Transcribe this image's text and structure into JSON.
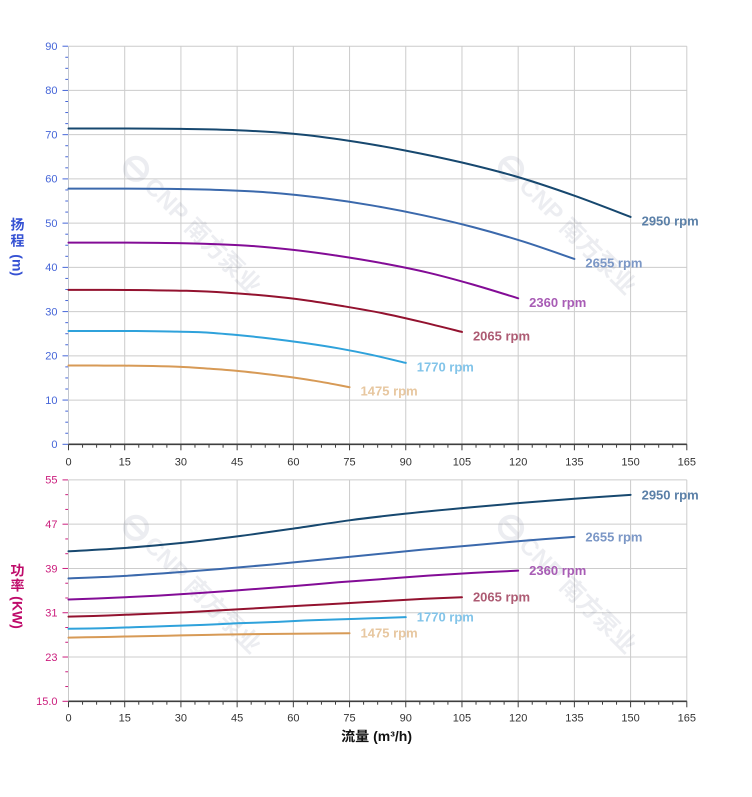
{
  "page": {
    "background": "#ffffff",
    "watermark": {
      "text": "CNP 南方泵业",
      "logo": "cnp-circle-e-logo",
      "color": "#69738f"
    }
  },
  "chart_data": [
    {
      "type": "line",
      "title": "",
      "ylabel": "扬程",
      "ylabel_unit": "(m)",
      "xlabel": "",
      "legend_position": "end-of-curve",
      "grid": true,
      "x_axis": {
        "min": 0,
        "max": 165,
        "major_step": 15,
        "minor_splits": 4,
        "tick_labels": [
          "0",
          "15",
          "30",
          "45",
          "60",
          "75",
          "90",
          "105",
          "120",
          "135",
          "150",
          "165"
        ],
        "label_color": "#333333",
        "line_color": "#3e3e3e"
      },
      "y_axis": {
        "min": 0,
        "max": 90,
        "major_step": 10,
        "minor_splits": 4,
        "tick_labels": [
          "0",
          "10",
          "20",
          "30",
          "40",
          "50",
          "60",
          "70",
          "80",
          "90"
        ],
        "label_color": "#4565d8",
        "title_color": "#3551d3",
        "line_color": "#c2c6ce"
      },
      "series": [
        {
          "name": "2950 rpm",
          "color": "#17486f",
          "label_color": "#5b80a8",
          "x": [
            0,
            15,
            30,
            45,
            60,
            75,
            90,
            105,
            120,
            135,
            150
          ],
          "values": [
            71.4,
            71.4,
            71.3,
            71.0,
            70.2,
            68.6,
            66.4,
            63.7,
            60.4,
            56.2,
            51.4
          ]
        },
        {
          "name": "2655 rpm",
          "color": "#3b69ac",
          "label_color": "#7b97c6",
          "x": [
            0,
            13.5,
            27,
            40.5,
            54,
            67.5,
            81,
            94.5,
            108,
            121.5,
            135
          ],
          "values": [
            57.8,
            57.8,
            57.75,
            57.5,
            56.9,
            55.7,
            54.0,
            51.8,
            49.1,
            45.8,
            41.9
          ]
        },
        {
          "name": "2360 rpm",
          "color": "#830c96",
          "label_color": "#a85cb5",
          "x": [
            0,
            12,
            24,
            36,
            48,
            60,
            72,
            84,
            96,
            108,
            120
          ],
          "values": [
            45.6,
            45.6,
            45.55,
            45.35,
            44.9,
            43.95,
            42.6,
            40.9,
            38.8,
            36.1,
            33.0
          ]
        },
        {
          "name": "2065 rpm",
          "color": "#93122f",
          "label_color": "#ad5b73",
          "x": [
            0,
            10.5,
            21,
            31.5,
            42,
            52.5,
            63,
            73.5,
            84,
            94.5,
            105
          ],
          "values": [
            34.9,
            34.9,
            34.85,
            34.7,
            34.3,
            33.6,
            32.6,
            31.2,
            29.6,
            27.6,
            25.4
          ]
        },
        {
          "name": "1770 rpm",
          "color": "#2fa2db",
          "label_color": "#82c4e9",
          "x": [
            0,
            9,
            18,
            27,
            36,
            45,
            54,
            63,
            72,
            81,
            90
          ],
          "values": [
            25.6,
            25.6,
            25.6,
            25.5,
            25.3,
            24.7,
            23.9,
            22.9,
            21.7,
            20.2,
            18.4
          ]
        },
        {
          "name": "1475 rpm",
          "color": "#d79a56",
          "label_color": "#e7c7a0",
          "x": [
            0,
            7.5,
            15,
            22.5,
            30,
            37.5,
            45,
            52.5,
            60,
            67.5,
            75
          ],
          "values": [
            17.8,
            17.8,
            17.78,
            17.7,
            17.5,
            17.1,
            16.6,
            15.9,
            15.1,
            14.1,
            12.9
          ]
        }
      ]
    },
    {
      "type": "line",
      "title": "",
      "ylabel": "功率",
      "ylabel_unit": "(KW)",
      "xlabel": "流量 (m³/h)",
      "legend_position": "end-of-curve",
      "grid": true,
      "x_axis": {
        "min": 0,
        "max": 165,
        "major_step": 15,
        "minor_splits": 4,
        "tick_labels": [
          "0",
          "15",
          "30",
          "45",
          "60",
          "75",
          "90",
          "105",
          "120",
          "135",
          "150",
          "165"
        ],
        "label_color": "#333333",
        "line_color": "#3e3e3e",
        "title_color": "#111111"
      },
      "y_axis": {
        "min": 15,
        "max": 55,
        "major_step": 8,
        "minor_splits": 3,
        "tick_labels": [
          "15.0",
          "23",
          "31",
          "39",
          "47",
          "55"
        ],
        "label_color": "#cb1d7d",
        "title_color": "#bf0b6a",
        "line_color": "#c9c9c9"
      },
      "series": [
        {
          "name": "2950 rpm",
          "color": "#17486f",
          "label_color": "#5b80a8",
          "x": [
            0,
            15,
            30,
            45,
            60,
            75,
            90,
            105,
            120,
            135,
            150
          ],
          "values": [
            42.1,
            42.7,
            43.6,
            44.8,
            46.2,
            47.7,
            48.9,
            49.9,
            50.8,
            51.6,
            52.3
          ]
        },
        {
          "name": "2655 rpm",
          "color": "#3b69ac",
          "label_color": "#7b97c6",
          "x": [
            0,
            13.5,
            27,
            40.5,
            54,
            67.5,
            81,
            94.5,
            108,
            121.5,
            135
          ],
          "values": [
            37.2,
            37.6,
            38.2,
            38.9,
            39.7,
            40.6,
            41.5,
            42.4,
            43.2,
            44.0,
            44.7
          ]
        },
        {
          "name": "2360 rpm",
          "color": "#830c96",
          "label_color": "#a85cb5",
          "x": [
            0,
            12,
            24,
            36,
            48,
            60,
            72,
            84,
            96,
            108,
            120
          ],
          "values": [
            33.4,
            33.7,
            34.1,
            34.6,
            35.2,
            35.8,
            36.5,
            37.1,
            37.7,
            38.2,
            38.6
          ]
        },
        {
          "name": "2065 rpm",
          "color": "#93122f",
          "label_color": "#ad5b73",
          "x": [
            0,
            10.5,
            21,
            31.5,
            42,
            52.5,
            63,
            73.5,
            84,
            94.5,
            105
          ],
          "values": [
            30.3,
            30.5,
            30.8,
            31.1,
            31.5,
            31.9,
            32.3,
            32.7,
            33.1,
            33.5,
            33.8
          ]
        },
        {
          "name": "1770 rpm",
          "color": "#2fa2db",
          "label_color": "#82c4e9",
          "x": [
            0,
            9,
            18,
            27,
            36,
            45,
            54,
            63,
            72,
            81,
            90
          ],
          "values": [
            28.1,
            28.2,
            28.4,
            28.6,
            28.8,
            29.1,
            29.3,
            29.6,
            29.8,
            30.0,
            30.2
          ]
        },
        {
          "name": "1475 rpm",
          "color": "#d79a56",
          "label_color": "#e7c7a0",
          "x": [
            0,
            7.5,
            15,
            22.5,
            30,
            37.5,
            45,
            52.5,
            60,
            67.5,
            75
          ],
          "values": [
            26.5,
            26.6,
            26.7,
            26.8,
            26.9,
            27.0,
            27.1,
            27.15,
            27.2,
            27.25,
            27.3
          ]
        }
      ]
    }
  ]
}
